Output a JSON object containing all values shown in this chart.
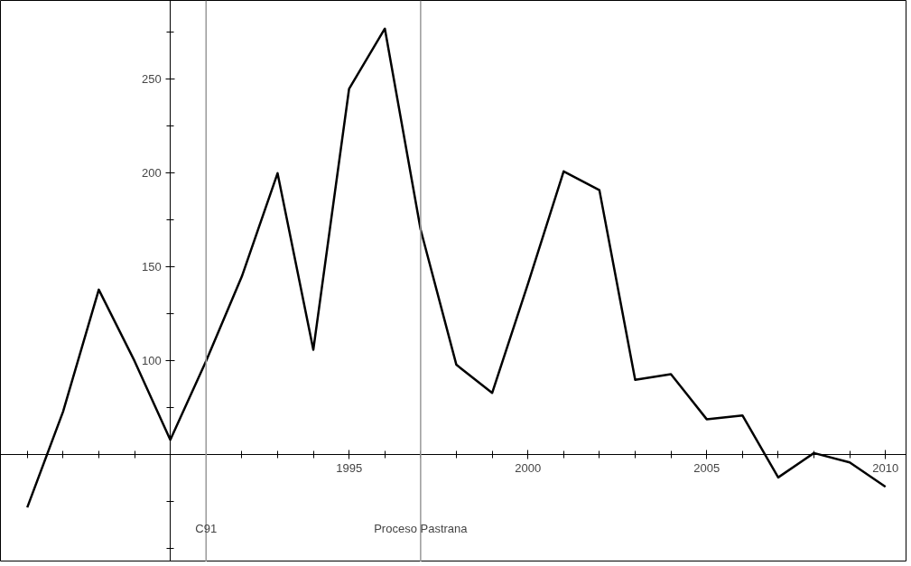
{
  "chart_data": {
    "type": "line",
    "x": [
      1986,
      1987,
      1988,
      1989,
      1990,
      1991,
      1992,
      1993,
      1994,
      1995,
      1996,
      1997,
      1998,
      1999,
      2000,
      2001,
      2002,
      2003,
      2004,
      2005,
      2006,
      2007,
      2008,
      2009,
      2010
    ],
    "series": [
      {
        "color": "#000000",
        "values": [
          22,
          73,
          138,
          100,
          58,
          100,
          145,
          200,
          106,
          245,
          277,
          170,
          98,
          83,
          141,
          201,
          191,
          90,
          93,
          69,
          71,
          38,
          51,
          46,
          33
        ]
      }
    ],
    "xlim": [
      1985.25,
      2010.6
    ],
    "ylim": [
      -7,
      292
    ],
    "xticks": [
      1995,
      2000,
      2005,
      2010
    ],
    "yticks": [
      100,
      150,
      200,
      250
    ],
    "ref_lines": [
      {
        "axis": "x",
        "value": 1991,
        "label": "C91",
        "color": "#999999"
      },
      {
        "axis": "x",
        "value": 1997,
        "label": "Proceso Pastrana",
        "color": "#999999"
      }
    ],
    "grid": false,
    "marker": "none",
    "line_style": "solid"
  }
}
